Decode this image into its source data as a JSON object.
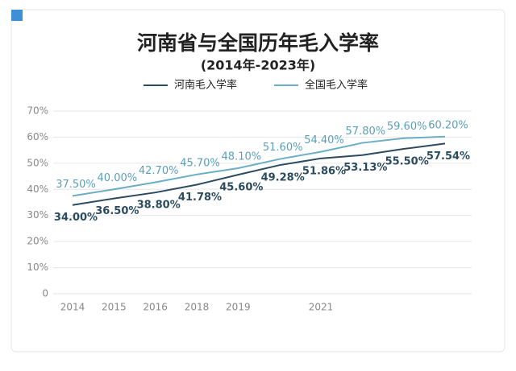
{
  "chart_data": {
    "type": "line",
    "title": "河南省与全国历年毛入学率",
    "subtitle": "(2014年-2023年)",
    "categories": [
      "2014",
      "2015",
      "2016",
      "2018",
      "2019",
      null,
      "2021",
      null,
      null,
      null
    ],
    "series": [
      {
        "name": "河南毛入学率",
        "color": "#2b4b5e",
        "values": [
          34.0,
          36.5,
          38.8,
          41.78,
          45.6,
          49.28,
          51.86,
          53.13,
          55.5,
          57.54
        ],
        "value_labels": [
          "34.00%",
          "36.50%",
          "38.80%",
          "41.78%",
          "45.60%",
          "49.28%",
          "51.86%",
          "53.13%",
          "55.50%",
          "57.54%"
        ]
      },
      {
        "name": "全国毛入学率",
        "color": "#6aaec6",
        "values": [
          37.5,
          40.0,
          42.7,
          45.7,
          48.1,
          51.6,
          54.4,
          57.8,
          59.6,
          60.2
        ],
        "value_labels": [
          "37.50%",
          "40.00%",
          "42.70%",
          "45.70%",
          "48.10%",
          "51.60%",
          "54.40%",
          "57.80%",
          "59.60%",
          "60.20%"
        ]
      }
    ],
    "ylim": [
      0,
      70
    ],
    "yticks": [
      0,
      {
        "value": 10,
        "label": "10%"
      },
      {
        "value": 20,
        "label": "20%"
      },
      {
        "value": 30,
        "label": "30%"
      },
      {
        "value": 40,
        "label": "40%"
      },
      {
        "value": 50,
        "label": "50%"
      },
      {
        "value": 60,
        "label": "60%"
      },
      {
        "value": 70,
        "label": "70%"
      }
    ],
    "grid": true
  }
}
